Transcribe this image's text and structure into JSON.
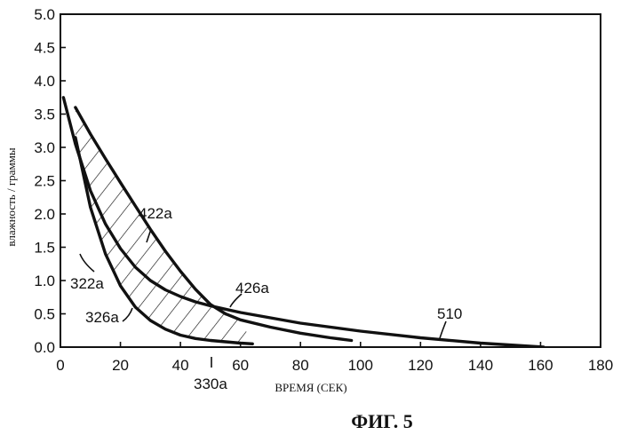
{
  "chart_data": {
    "type": "line",
    "title": "ФИГ. 5",
    "xlabel": "ВРЕМЯ (СЕК)",
    "ylabel": "влажность / граммы",
    "xlim": [
      0,
      180
    ],
    "ylim": [
      0.0,
      5.0
    ],
    "x_ticks": [
      "0",
      "20",
      "40",
      "60",
      "80",
      "100",
      "120",
      "140",
      "160",
      "180"
    ],
    "y_ticks": [
      "0.0",
      "0.5",
      "1.0",
      "1.5",
      "2.0",
      "2.5",
      "3.0",
      "3.5",
      "4.0",
      "4.5",
      "5.0"
    ],
    "grid": false,
    "series": [
      {
        "name": "422a",
        "x": [
          5,
          10,
          15,
          20,
          25,
          30,
          35,
          40,
          45,
          50,
          55,
          60,
          70,
          80,
          90,
          97
        ],
        "y": [
          3.6,
          3.2,
          2.83,
          2.47,
          2.12,
          1.77,
          1.44,
          1.14,
          0.87,
          0.64,
          0.5,
          0.41,
          0.3,
          0.21,
          0.14,
          0.1
        ]
      },
      {
        "name": "322a",
        "x": [
          1,
          5,
          10,
          15,
          20,
          25,
          30,
          35,
          40,
          45,
          50,
          55,
          60,
          70,
          80,
          100,
          120,
          140,
          161
        ],
        "y": [
          3.75,
          3.05,
          2.35,
          1.85,
          1.48,
          1.2,
          1.0,
          0.86,
          0.76,
          0.68,
          0.62,
          0.57,
          0.52,
          0.44,
          0.36,
          0.24,
          0.14,
          0.06,
          0.0
        ]
      },
      {
        "name": "326a",
        "x": [
          5,
          10,
          15,
          20,
          25,
          30,
          35,
          40,
          45,
          50,
          55,
          60,
          64
        ],
        "y": [
          3.15,
          2.1,
          1.4,
          0.92,
          0.6,
          0.4,
          0.27,
          0.18,
          0.13,
          0.1,
          0.08,
          0.06,
          0.05
        ]
      }
    ],
    "annotations": [
      "422a",
      "322a",
      "326a",
      "426a",
      "510",
      "330a"
    ]
  }
}
